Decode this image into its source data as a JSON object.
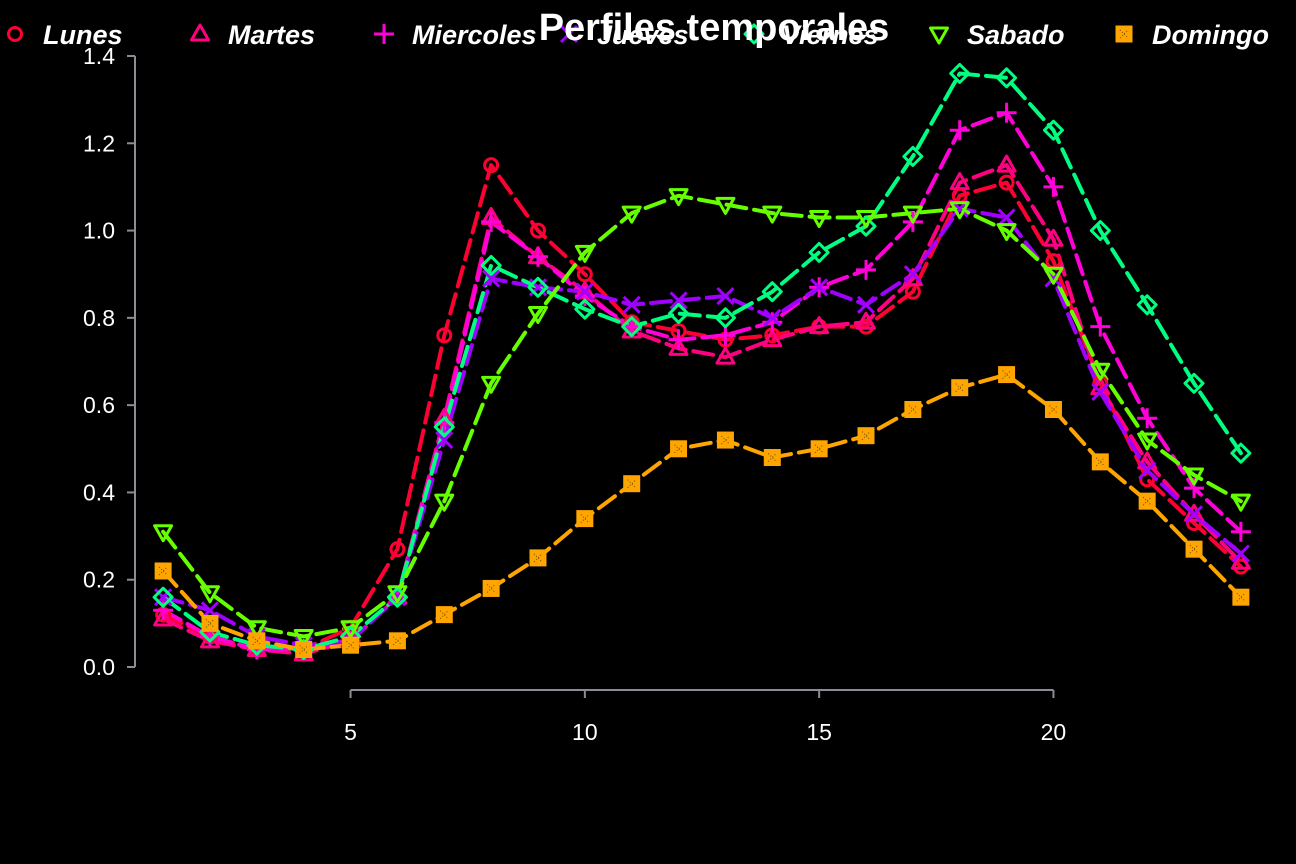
{
  "chart_data": {
    "type": "line",
    "title": "Perfiles temporales",
    "xlabel": "",
    "ylabel": "",
    "xlim": [
      0.4,
      24.6
    ],
    "ylim": [
      0,
      1.4
    ],
    "xticks": [
      "5",
      "10",
      "15",
      "20"
    ],
    "yticks": [
      "0.0",
      "0.2",
      "0.4",
      "0.6",
      "0.8",
      "1.0",
      "1.2",
      "1.4"
    ],
    "grid": false,
    "legend_position": "top",
    "x": [
      1,
      2,
      3,
      4,
      5,
      6,
      7,
      8,
      9,
      10,
      11,
      12,
      13,
      14,
      15,
      16,
      17,
      18,
      19,
      20,
      21,
      22,
      23,
      24
    ],
    "series": [
      {
        "name": "Lunes",
        "color": "#ff0033",
        "marker": "circle",
        "values": [
          0.12,
          0.07,
          0.04,
          0.04,
          0.09,
          0.27,
          0.76,
          1.15,
          1.0,
          0.9,
          0.79,
          0.77,
          0.75,
          0.76,
          0.78,
          0.78,
          0.86,
          1.08,
          1.11,
          0.93,
          0.65,
          0.43,
          0.33,
          0.23
        ]
      },
      {
        "name": "Martes",
        "color": "#ff0080",
        "marker": "triangle-up",
        "values": [
          0.11,
          0.06,
          0.04,
          0.03,
          0.06,
          0.16,
          0.57,
          1.03,
          0.94,
          0.86,
          0.77,
          0.73,
          0.71,
          0.75,
          0.78,
          0.79,
          0.89,
          1.11,
          1.15,
          0.98,
          0.64,
          0.47,
          0.35,
          0.24
        ]
      },
      {
        "name": "Miercoles",
        "color": "#ff00d9",
        "marker": "plus",
        "values": [
          0.13,
          0.07,
          0.04,
          0.04,
          0.06,
          0.16,
          0.56,
          1.02,
          0.94,
          0.85,
          0.78,
          0.75,
          0.76,
          0.79,
          0.87,
          0.91,
          1.02,
          1.23,
          1.27,
          1.1,
          0.78,
          0.57,
          0.41,
          0.31
        ]
      },
      {
        "name": "Jueves",
        "color": "#a100ff",
        "marker": "cross",
        "values": [
          0.16,
          0.13,
          0.07,
          0.05,
          0.06,
          0.16,
          0.52,
          0.89,
          0.87,
          0.86,
          0.83,
          0.84,
          0.85,
          0.8,
          0.87,
          0.83,
          0.9,
          1.05,
          1.03,
          0.89,
          0.63,
          0.45,
          0.35,
          0.26
        ]
      },
      {
        "name": "Viernes",
        "color": "#00ff80",
        "marker": "diamond",
        "values": [
          0.16,
          0.08,
          0.05,
          0.04,
          0.07,
          0.16,
          0.55,
          0.92,
          0.87,
          0.82,
          0.78,
          0.81,
          0.8,
          0.86,
          0.95,
          1.01,
          1.17,
          1.36,
          1.35,
          1.23,
          1.0,
          0.83,
          0.65,
          0.49
        ]
      },
      {
        "name": "Sabado",
        "color": "#66ff00",
        "marker": "triangle-down",
        "values": [
          0.31,
          0.17,
          0.09,
          0.07,
          0.09,
          0.17,
          0.38,
          0.65,
          0.81,
          0.95,
          1.04,
          1.08,
          1.06,
          1.04,
          1.03,
          1.03,
          1.04,
          1.05,
          1.0,
          0.9,
          0.68,
          0.52,
          0.44,
          0.38
        ]
      },
      {
        "name": "Domingo",
        "color": "#ffa500",
        "marker": "square",
        "values": [
          0.22,
          0.1,
          0.06,
          0.04,
          0.05,
          0.06,
          0.12,
          0.18,
          0.25,
          0.34,
          0.42,
          0.5,
          0.52,
          0.48,
          0.5,
          0.53,
          0.59,
          0.64,
          0.67,
          0.59,
          0.47,
          0.38,
          0.27,
          0.16
        ]
      }
    ]
  }
}
